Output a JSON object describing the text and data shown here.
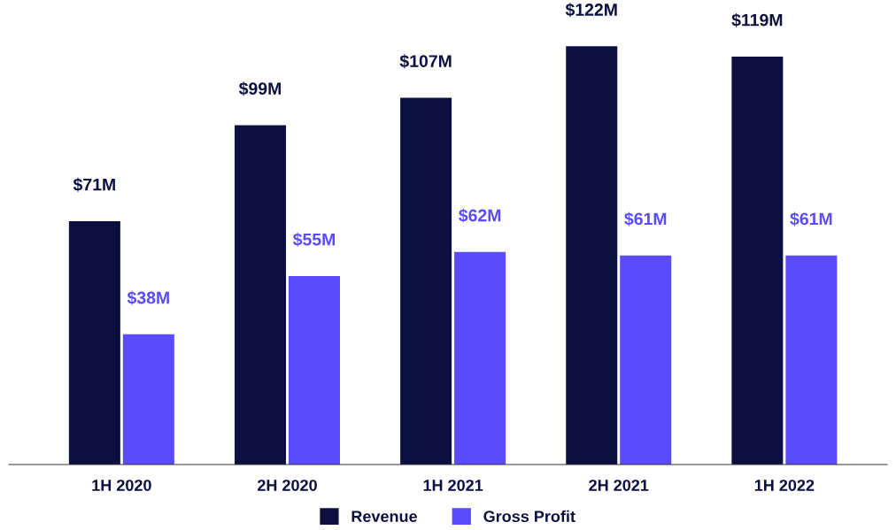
{
  "chart_data": {
    "type": "bar",
    "categories": [
      "1H 2020",
      "2H 2020",
      "1H 2021",
      "2H 2021",
      "1H 2022"
    ],
    "series": [
      {
        "name": "Revenue",
        "color": "#0b1040",
        "values": [
          71,
          99,
          107,
          122,
          119
        ],
        "value_labels": [
          "$71M",
          "$99M",
          "$107M",
          "$122M",
          "$119M"
        ]
      },
      {
        "name": "Gross Profit",
        "color": "#5b4bff",
        "values": [
          38,
          55,
          62,
          61,
          61
        ],
        "value_labels": [
          "$38M",
          "$55M",
          "$62M",
          "$61M",
          "$61M"
        ]
      }
    ],
    "tick_labels": "x",
    "legend": "bottom"
  }
}
